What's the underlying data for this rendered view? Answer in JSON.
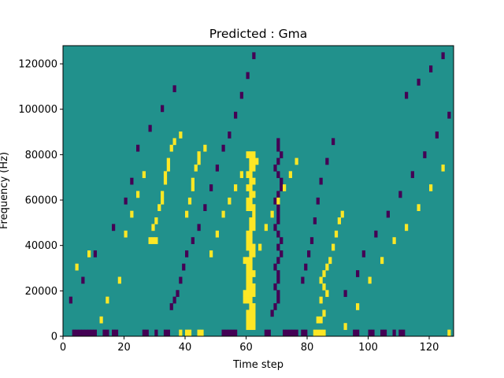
{
  "chart_data": {
    "type": "heatmap",
    "title": "Predicted : Gma",
    "xlabel": "Time step",
    "ylabel": "Frequency (Hz)",
    "xlim": [
      0,
      128
    ],
    "ylim": [
      0,
      128000
    ],
    "n_time_steps": 128,
    "n_frequency_bins": 44,
    "x_ticks": [
      0,
      20,
      40,
      60,
      80,
      100,
      120
    ],
    "y_ticks": [
      0,
      20000,
      40000,
      60000,
      80000,
      100000,
      120000
    ],
    "x_tick_labels": [
      "0",
      "20",
      "40",
      "60",
      "80",
      "100",
      "120"
    ],
    "y_tick_labels": [
      "0",
      "20000",
      "40000",
      "60000",
      "80000",
      "100000",
      "120000"
    ],
    "values_legend": {
      "-1": "low (dark purple)",
      "0": "neutral (teal)",
      "1": "high (yellow)"
    },
    "colors": {
      "low": "#440154",
      "neutral": "#21918c",
      "high": "#fde725"
    },
    "cells": {
      "high": [
        [
          38,
          0
        ],
        [
          40,
          0
        ],
        [
          41,
          0
        ],
        [
          44,
          0
        ],
        [
          45,
          0
        ],
        [
          60,
          1
        ],
        [
          61,
          1
        ],
        [
          62,
          1
        ],
        [
          60,
          2
        ],
        [
          61,
          2
        ],
        [
          62,
          2
        ],
        [
          60,
          3
        ],
        [
          61,
          3
        ],
        [
          62,
          3
        ],
        [
          61,
          4
        ],
        [
          62,
          4
        ],
        [
          59,
          5
        ],
        [
          60,
          5
        ],
        [
          61,
          5
        ],
        [
          59,
          6
        ],
        [
          60,
          6
        ],
        [
          61,
          6
        ],
        [
          62,
          6
        ],
        [
          60,
          7
        ],
        [
          61,
          7
        ],
        [
          62,
          7
        ],
        [
          60,
          8
        ],
        [
          61,
          8
        ],
        [
          60,
          9
        ],
        [
          61,
          9
        ],
        [
          62,
          9
        ],
        [
          60,
          10
        ],
        [
          61,
          10
        ],
        [
          59,
          11
        ],
        [
          60,
          11
        ],
        [
          61,
          11
        ],
        [
          61,
          12
        ],
        [
          62,
          12
        ],
        [
          60,
          13
        ],
        [
          61,
          13
        ],
        [
          62,
          13
        ],
        [
          60,
          14
        ],
        [
          61,
          14
        ],
        [
          60,
          15
        ],
        [
          61,
          15
        ],
        [
          61,
          16
        ],
        [
          62,
          16
        ],
        [
          61,
          17
        ],
        [
          62,
          17
        ],
        [
          62,
          18
        ],
        [
          60,
          19
        ],
        [
          61,
          19
        ],
        [
          62,
          19
        ],
        [
          60,
          20
        ],
        [
          61,
          20
        ],
        [
          61,
          21
        ],
        [
          62,
          21
        ],
        [
          60,
          22
        ],
        [
          61,
          22
        ],
        [
          61,
          23
        ],
        [
          62,
          23
        ],
        [
          60,
          24
        ],
        [
          61,
          24
        ],
        [
          61,
          25
        ],
        [
          62,
          25
        ],
        [
          61,
          26
        ],
        [
          62,
          26
        ],
        [
          63,
          26
        ],
        [
          60,
          27
        ],
        [
          61,
          27
        ],
        [
          62,
          27
        ],
        [
          28,
          14
        ],
        [
          29,
          14
        ],
        [
          30,
          14
        ],
        [
          29,
          16
        ],
        [
          30,
          17
        ],
        [
          31,
          19
        ],
        [
          32,
          20
        ],
        [
          32,
          21
        ],
        [
          33,
          23
        ],
        [
          33,
          24
        ],
        [
          34,
          25
        ],
        [
          34,
          26
        ],
        [
          35,
          28
        ],
        [
          36,
          29
        ],
        [
          38,
          30
        ],
        [
          40,
          18
        ],
        [
          41,
          20
        ],
        [
          42,
          22
        ],
        [
          42,
          23
        ],
        [
          43,
          25
        ],
        [
          44,
          26
        ],
        [
          44,
          27
        ],
        [
          46,
          28
        ],
        [
          82,
          0
        ],
        [
          83,
          0
        ],
        [
          84,
          0
        ],
        [
          85,
          0
        ],
        [
          83,
          2
        ],
        [
          84,
          2
        ],
        [
          85,
          3
        ],
        [
          84,
          5
        ],
        [
          86,
          6
        ],
        [
          85,
          7
        ],
        [
          84,
          8
        ],
        [
          85,
          9
        ],
        [
          86,
          10
        ],
        [
          87,
          11
        ],
        [
          88,
          13
        ],
        [
          89,
          15
        ],
        [
          90,
          17
        ],
        [
          91,
          18
        ],
        [
          4,
          10
        ],
        [
          8,
          12
        ],
        [
          12,
          2
        ],
        [
          14,
          5
        ],
        [
          18,
          8
        ],
        [
          20,
          15
        ],
        [
          22,
          18
        ],
        [
          24,
          21
        ],
        [
          26,
          24
        ],
        [
          48,
          12
        ],
        [
          50,
          15
        ],
        [
          52,
          18
        ],
        [
          54,
          20
        ],
        [
          56,
          22
        ],
        [
          58,
          24
        ],
        [
          64,
          13
        ],
        [
          66,
          16
        ],
        [
          68,
          18
        ],
        [
          70,
          20
        ],
        [
          72,
          22
        ],
        [
          74,
          24
        ],
        [
          76,
          26
        ],
        [
          92,
          1
        ],
        [
          96,
          4
        ],
        [
          100,
          8
        ],
        [
          104,
          11
        ],
        [
          108,
          14
        ],
        [
          112,
          16
        ],
        [
          116,
          19
        ],
        [
          120,
          22
        ],
        [
          124,
          25
        ],
        [
          126,
          0
        ]
      ],
      "low": [
        [
          3,
          0
        ],
        [
          4,
          0
        ],
        [
          5,
          0
        ],
        [
          6,
          0
        ],
        [
          7,
          0
        ],
        [
          8,
          0
        ],
        [
          9,
          0
        ],
        [
          10,
          0
        ],
        [
          13,
          0
        ],
        [
          14,
          0
        ],
        [
          16,
          0
        ],
        [
          17,
          0
        ],
        [
          26,
          0
        ],
        [
          27,
          0
        ],
        [
          30,
          0
        ],
        [
          33,
          0
        ],
        [
          34,
          0
        ],
        [
          52,
          0
        ],
        [
          53,
          0
        ],
        [
          54,
          0
        ],
        [
          55,
          0
        ],
        [
          56,
          0
        ],
        [
          66,
          0
        ],
        [
          67,
          0
        ],
        [
          72,
          0
        ],
        [
          73,
          0
        ],
        [
          74,
          0
        ],
        [
          75,
          0
        ],
        [
          76,
          0
        ],
        [
          78,
          0
        ],
        [
          79,
          0
        ],
        [
          95,
          0
        ],
        [
          96,
          0
        ],
        [
          100,
          0
        ],
        [
          101,
          0
        ],
        [
          104,
          0
        ],
        [
          105,
          0
        ],
        [
          108,
          0
        ],
        [
          110,
          0
        ],
        [
          111,
          0
        ],
        [
          68,
          3
        ],
        [
          69,
          4
        ],
        [
          70,
          5
        ],
        [
          70,
          6
        ],
        [
          69,
          7
        ],
        [
          70,
          8
        ],
        [
          70,
          9
        ],
        [
          69,
          10
        ],
        [
          70,
          11
        ],
        [
          71,
          12
        ],
        [
          70,
          13
        ],
        [
          71,
          14
        ],
        [
          70,
          15
        ],
        [
          69,
          16
        ],
        [
          70,
          17
        ],
        [
          70,
          18
        ],
        [
          70,
          19
        ],
        [
          69,
          20
        ],
        [
          70,
          21
        ],
        [
          71,
          22
        ],
        [
          71,
          23
        ],
        [
          70,
          24
        ],
        [
          69,
          25
        ],
        [
          70,
          26
        ],
        [
          71,
          27
        ],
        [
          70,
          28
        ],
        [
          70,
          29
        ],
        [
          35,
          4
        ],
        [
          36,
          5
        ],
        [
          37,
          6
        ],
        [
          38,
          8
        ],
        [
          39,
          10
        ],
        [
          40,
          12
        ],
        [
          42,
          14
        ],
        [
          44,
          16
        ],
        [
          46,
          19
        ],
        [
          48,
          22
        ],
        [
          50,
          25
        ],
        [
          52,
          28
        ],
        [
          54,
          30
        ],
        [
          56,
          33
        ],
        [
          58,
          36
        ],
        [
          60,
          39
        ],
        [
          62,
          42
        ],
        [
          78,
          8
        ],
        [
          79,
          10
        ],
        [
          80,
          12
        ],
        [
          81,
          14
        ],
        [
          82,
          17
        ],
        [
          83,
          20
        ],
        [
          84,
          23
        ],
        [
          86,
          26
        ],
        [
          88,
          29
        ],
        [
          2,
          5
        ],
        [
          6,
          8
        ],
        [
          10,
          12
        ],
        [
          16,
          16
        ],
        [
          20,
          20
        ],
        [
          22,
          23
        ],
        [
          24,
          28
        ],
        [
          28,
          31
        ],
        [
          32,
          34
        ],
        [
          36,
          37
        ],
        [
          92,
          6
        ],
        [
          96,
          9
        ],
        [
          98,
          12
        ],
        [
          102,
          15
        ],
        [
          106,
          18
        ],
        [
          110,
          21
        ],
        [
          114,
          24
        ],
        [
          118,
          27
        ],
        [
          122,
          30
        ],
        [
          126,
          33
        ],
        [
          112,
          36
        ],
        [
          116,
          38
        ],
        [
          120,
          40
        ],
        [
          124,
          42
        ]
      ]
    }
  }
}
